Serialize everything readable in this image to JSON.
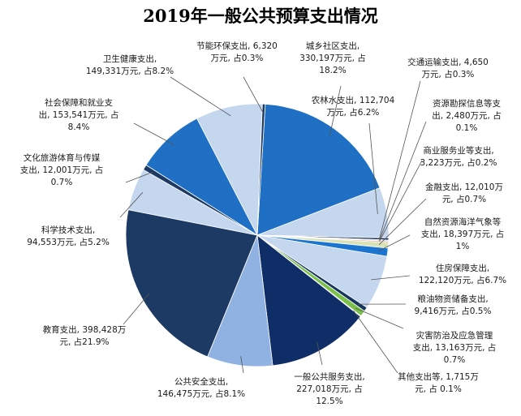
{
  "chart_data": {
    "type": "pie",
    "title": "2019年一般公共预算支出情况",
    "slices": [
      {
        "name": "城乡社区支出",
        "value": 330197,
        "percent": 18.2,
        "color": "#1f6fc4",
        "lines": [
          "城乡社区支出,",
          "330,197万元, 占",
          "18.2%"
        ]
      },
      {
        "name": "农林水支出",
        "value": 112704,
        "percent": 6.2,
        "color": "#c5d6ef",
        "lines": [
          "农林水支出, 112,704",
          "万元, 占6.2%"
        ]
      },
      {
        "name": "交通运输支出",
        "value": 4650,
        "percent": 0.3,
        "color": "#0d2b57",
        "lines": [
          "交通运输支出, 4,650",
          "万元, 占0.3%"
        ]
      },
      {
        "name": "资源勘探信息等支出",
        "value": 2480,
        "percent": 0.1,
        "color": "#a7bfe3",
        "lines": [
          "资源勘探信息等支",
          "出, 2,480万元, 占",
          "0.1%"
        ]
      },
      {
        "name": "商业服务业等支出",
        "value": 3223,
        "percent": 0.2,
        "color": "#e6a98c",
        "lines": [
          "商业服务业等支出,",
          "3,223万元, 占0.2%"
        ]
      },
      {
        "name": "金融支出",
        "value": 12010,
        "percent": 0.7,
        "color": "#d9e2b5",
        "lines": [
          "金融支出, 12,010万",
          "元, 占0.7%"
        ]
      },
      {
        "name": "自然资源海洋气象等支出",
        "value": 18397,
        "percent": 1,
        "color": "#1a74d0",
        "lines": [
          "自然资源海洋气象等",
          "支出, 18,397万元, 占",
          "1%"
        ]
      },
      {
        "name": "住房保障支出",
        "value": 122120,
        "percent": 6.7,
        "color": "#c5d6ef",
        "lines": [
          "住房保障支出,",
          "122,120万元, 占6.7%"
        ]
      },
      {
        "name": "粮油物资储备支出",
        "value": 9416,
        "percent": 0.5,
        "color": "#16355e",
        "lines": [
          "粮油物资储备支出,",
          "9,416万元, 占0.5%"
        ]
      },
      {
        "name": "灾害防治及应急管理支出",
        "value": 13163,
        "percent": 0.7,
        "color": "#7ac04a",
        "lines": [
          "灾害防治及应急管理",
          "支出, 13,163万元, 占",
          "0.7%"
        ]
      },
      {
        "name": "其他支出等",
        "value": 1715,
        "percent": 0.1,
        "color": "#9fc2e8",
        "lines": [
          "其他支出等, 1,715万",
          "元, 占 0.1%"
        ]
      },
      {
        "name": "一般公共服务支出",
        "value": 227018,
        "percent": 12.5,
        "color": "#0f2d66",
        "lines": [
          "一般公共服务支出,",
          "227,018万元, 占",
          "12.5%"
        ]
      },
      {
        "name": "公共安全支出",
        "value": 146475,
        "percent": 8.1,
        "color": "#8fb2e3",
        "lines": [
          "公共安全支出,",
          "146,475万元, 占8.1%"
        ]
      },
      {
        "name": "教育支出",
        "value": 398428,
        "percent": 21.9,
        "color": "#1c3a63",
        "lines": [
          "教育支出, 398,428万",
          "元, 占21.9%"
        ]
      },
      {
        "name": "科学技术支出",
        "value": 94553,
        "percent": 5.2,
        "color": "#c5d6ef",
        "lines": [
          "科学技术支出,",
          "94,553万元, 占5.2%"
        ]
      },
      {
        "name": "文化旅游体育与传媒支出",
        "value": 12001,
        "percent": 0.7,
        "color": "#1c3a63",
        "lines": [
          "文化旅游体育与传媒",
          "支出, 12,001万元, 占",
          "0.7%"
        ]
      },
      {
        "name": "社会保障和就业支出",
        "value": 153541,
        "percent": 8.4,
        "color": "#1f6fc4",
        "lines": [
          "社会保障和就业支",
          "出, 153,541万元, 占",
          "8.4%"
        ]
      },
      {
        "name": "卫生健康支出",
        "value": 149331,
        "percent": 8.2,
        "color": "#c5d6ef",
        "lines": [
          "卫生健康支出,",
          "149,331万元, 占8.2%"
        ]
      },
      {
        "name": "节能环保支出",
        "value": 6320,
        "percent": 0.3,
        "color": "#1c3a63",
        "lines": [
          "节能环保支出, 6,320",
          "万元, 占0.3%"
        ]
      }
    ]
  }
}
